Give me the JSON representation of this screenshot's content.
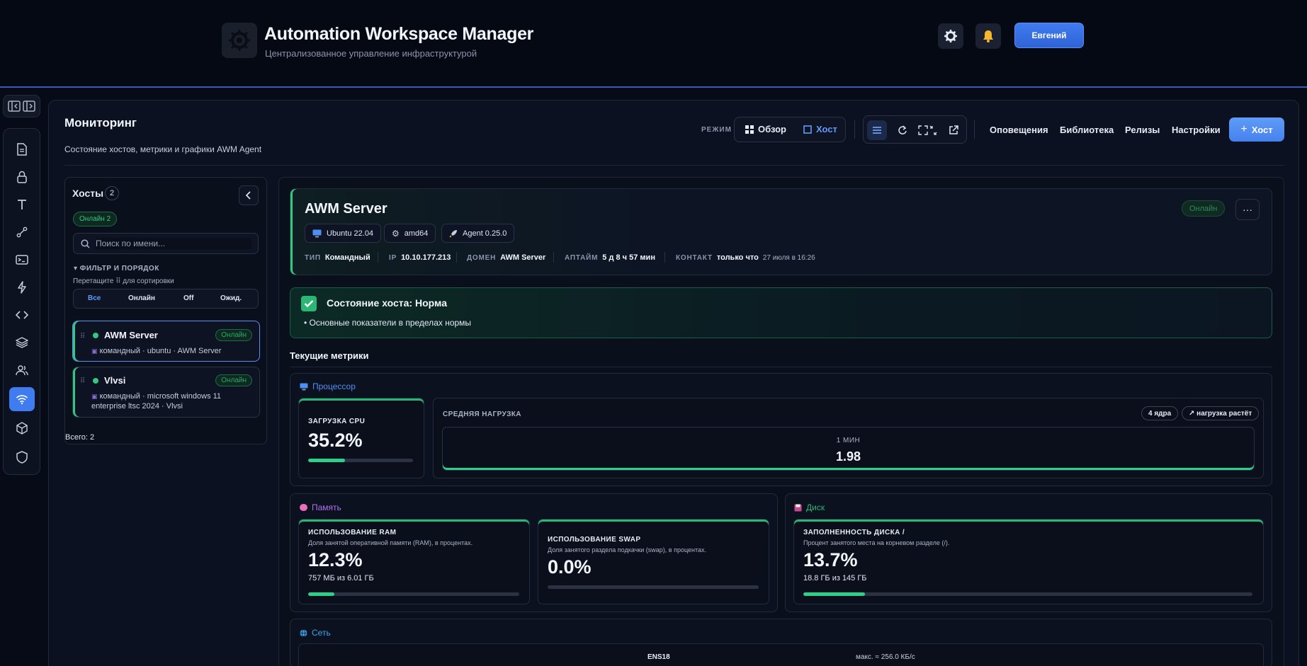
{
  "header": {
    "title": "Automation Workspace Manager",
    "subtitle": "Централизованное управление инфраструктурой",
    "user_label": "Евгений"
  },
  "page": {
    "title": "Мониторинг",
    "subtitle": "Состояние хостов, метрики и графики AWM Agent"
  },
  "toolbar": {
    "mode_label": "РЕЖИМ",
    "mode_overview": "Обзор",
    "mode_host": "Хост",
    "links": [
      "Оповещения",
      "Библиотека",
      "Релизы",
      "Настройки"
    ],
    "add_host_label": "Хост"
  },
  "hosts_panel": {
    "title": "Хосты",
    "count": "2",
    "online_badge": "Онлайн 2",
    "search_placeholder": "Поиск по имени...",
    "filter_heading": "▾ ФИЛЬТР И ПОРЯДОК",
    "filter_hint": "Перетащите ⠿ для сортировки",
    "filters": [
      "Все",
      "Онлайн",
      "Off",
      "Ожид."
    ],
    "hosts": [
      {
        "name": "AWM Server",
        "status": "Онлайн",
        "desc": "командный · ubuntu · AWM Server"
      },
      {
        "name": "Vlvsi",
        "status": "Онлайн",
        "desc_line1": "командный · microsoft windows 11",
        "desc_line2": "enterprise ltsc 2024 · Vlvsi"
      }
    ],
    "total": "Всего: 2"
  },
  "host_detail": {
    "name": "AWM Server",
    "status": "Онлайн",
    "chips": [
      "Ubuntu 22.04",
      "amd64",
      "Agent 0.25.0"
    ],
    "meta": {
      "type_key": "ТИП",
      "type_val": "Командный",
      "ip_key": "IP",
      "ip_val": "10.10.177.213",
      "domain_key": "ДОМЕН",
      "domain_val": "AWM Server",
      "uptime_key": "АПТАЙМ",
      "uptime_val": "5 д 8 ч 57 мин",
      "contact_key": "КОНТАКТ",
      "contact_val": "только что",
      "contact_time": "27 июля в 16:26"
    }
  },
  "status": {
    "title": "Состояние хоста: Норма",
    "line": "• Основные показатели в пределах нормы"
  },
  "metrics": {
    "title": "Текущие метрики",
    "cpu": {
      "section": "Процессор",
      "load_label": "ЗАГРУЗКА CPU",
      "load_value": "35.2%",
      "load_fraction": 0.352,
      "avg_label": "СРЕДНЯЯ НАГРУЗКА",
      "cores_pill": "4 ядра",
      "trend_pill": "↗ нагрузка растёт",
      "avg_period": "1 МИН",
      "avg_value": "1.98"
    },
    "memory": {
      "section": "Память",
      "ram_label": "ИСПОЛЬЗОВАНИЕ RAM",
      "ram_desc": "Доля занятой оперативной памяти (RAM), в процентах.",
      "ram_value": "12.3%",
      "ram_sub": "757 МБ из 6.01 ГБ",
      "ram_fraction": 0.123,
      "swap_label": "ИСПОЛЬЗОВАНИЕ SWAP",
      "swap_desc": "Доля занятого раздела подкачки (swap), в процентах.",
      "swap_value": "0.0%",
      "swap_fraction": 0.0
    },
    "disk": {
      "section": "Диск",
      "label": "ЗАПОЛНЕННОСТЬ ДИСКА /",
      "desc": "Процент занятого места на корневом разделе (/).",
      "value": "13.7%",
      "sub": "18.8 ГБ из 145 ГБ",
      "fraction": 0.137
    },
    "network": {
      "section": "Сеть",
      "iface": "ENS18",
      "max": "макс. ≈ 256.0 КБ/с"
    }
  },
  "colors": {
    "accent": "#3f7cf0",
    "online": "#34c77f",
    "cpu_title": "#4f8ff5",
    "mem_title": "#b06ef0",
    "disk_title": "#2bb673",
    "net_title": "#3aa6e8"
  }
}
